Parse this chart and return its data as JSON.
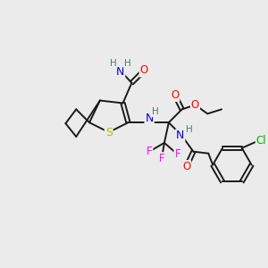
{
  "background_color": "#ebebeb",
  "figsize": [
    3.0,
    3.0
  ],
  "dpi": 100,
  "colors": {
    "S": "#b8b800",
    "O": "#ff0000",
    "N": "#0000cc",
    "F": "#ff00ff",
    "Cl": "#00aa00",
    "H": "#557777",
    "bond": "#1a1a1a"
  },
  "bond_width": 1.4,
  "font_size": 8.5
}
